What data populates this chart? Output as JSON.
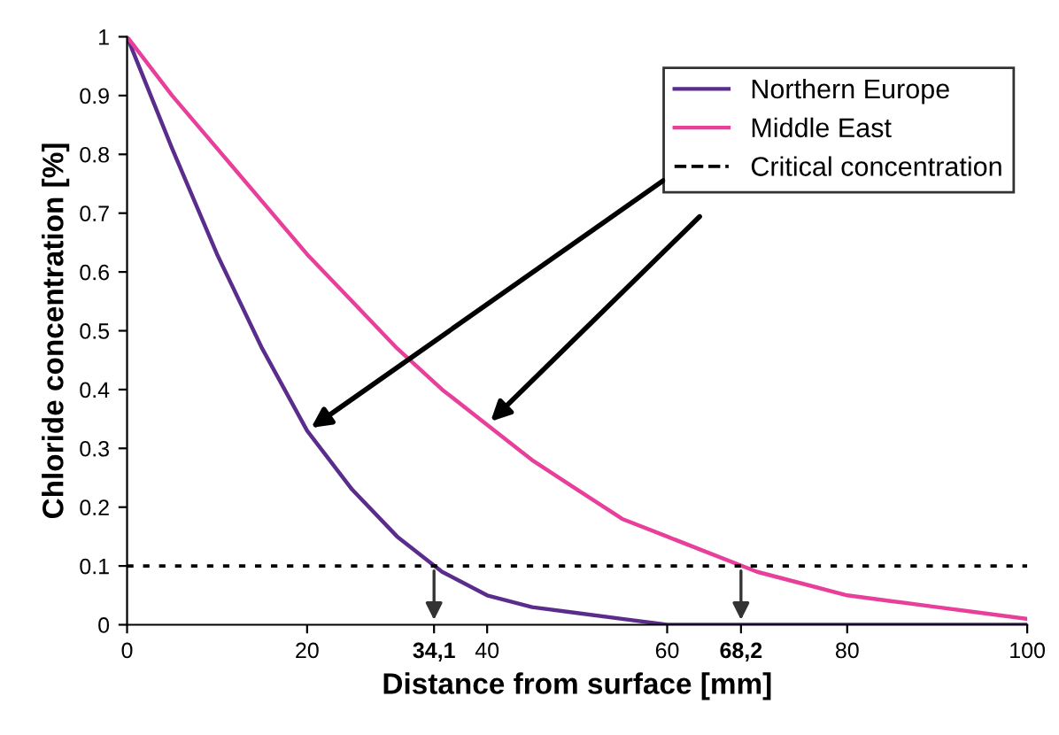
{
  "chart_data": {
    "type": "line",
    "xlabel": "Distance from surface [mm]",
    "ylabel": "Chloride concentration [%]",
    "x": [
      0,
      5,
      10,
      15,
      20,
      25,
      30,
      35,
      40,
      45,
      50,
      55,
      60,
      65,
      70,
      75,
      80,
      85,
      90,
      95,
      100
    ],
    "series": [
      {
        "name": "Northern Europe",
        "color": "#5a2d8c",
        "values": [
          1,
          0.81,
          0.63,
          0.47,
          0.33,
          0.23,
          0.15,
          0.09,
          0.05,
          0.03,
          0.02,
          0.01,
          0,
          0,
          0,
          0,
          0,
          0,
          0,
          0,
          0
        ]
      },
      {
        "name": "Middle East",
        "color": "#e8409a",
        "values": [
          1,
          0.9,
          0.81,
          0.72,
          0.63,
          0.55,
          0.47,
          0.4,
          0.34,
          0.28,
          0.23,
          0.18,
          0.15,
          0.12,
          0.09,
          0.07,
          0.05,
          0.04,
          0.03,
          0.02,
          0.01
        ]
      }
    ],
    "ref_lines": [
      {
        "axis": "y",
        "value": 0.1,
        "label": "Critical concentration",
        "color": "#000000",
        "line_style": "dotted"
      }
    ],
    "xlim": [
      0,
      100
    ],
    "xticks": [
      0,
      20,
      {
        "value": 34.1,
        "label": "34,1"
      },
      40,
      60,
      {
        "value": 68.2,
        "label": "68,2"
      },
      80,
      100
    ],
    "ylim": [
      0,
      1
    ],
    "yticks": [
      0,
      0.1,
      0.2,
      0.3,
      0.4,
      0.5,
      0.6,
      0.7,
      0.8,
      0.9,
      1
    ],
    "grid": false,
    "legend": "top right",
    "marker": "none",
    "line_style": "solid"
  }
}
